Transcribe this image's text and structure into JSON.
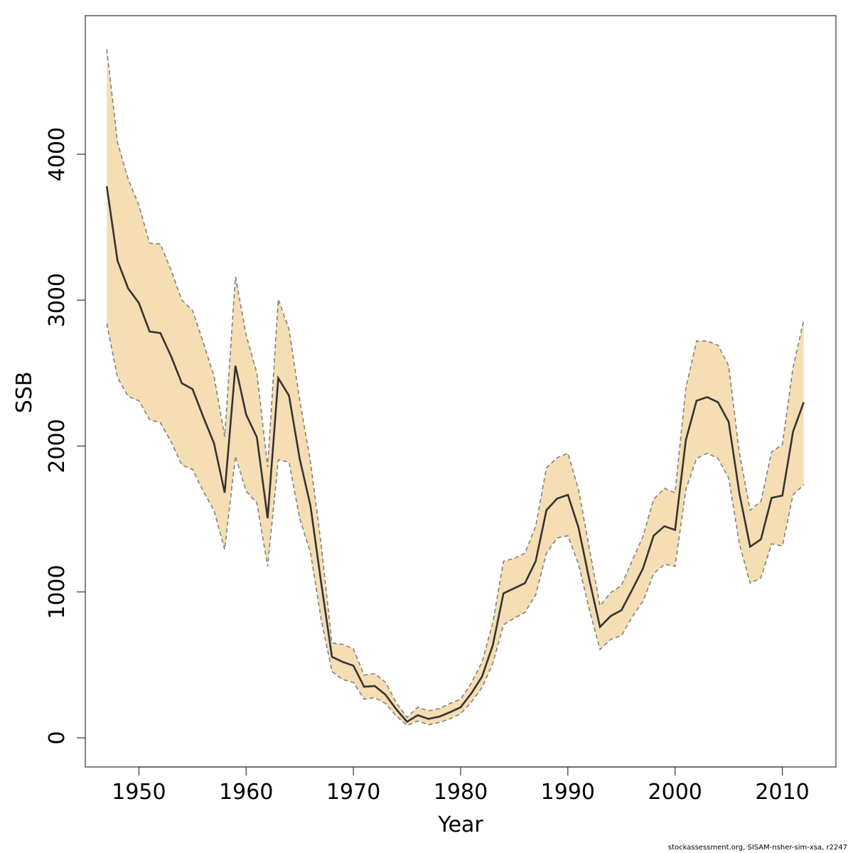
{
  "chart_data": {
    "type": "area",
    "title": "",
    "xlabel": "Year",
    "ylabel": "SSB",
    "xlim": [
      1945,
      2015
    ],
    "ylim": [
      -200,
      4950
    ],
    "xticks": [
      1950,
      1960,
      1970,
      1980,
      1990,
      2000,
      2010
    ],
    "yticks": [
      0,
      1000,
      2000,
      3000,
      4000
    ],
    "grid": false,
    "colors": {
      "band": "#f5deb3",
      "line": "#333333",
      "bound": "#808080"
    },
    "x": [
      1947,
      1948,
      1949,
      1950,
      1951,
      1952,
      1953,
      1954,
      1955,
      1956,
      1957,
      1958,
      1959,
      1960,
      1961,
      1962,
      1963,
      1964,
      1965,
      1966,
      1967,
      1968,
      1969,
      1970,
      1971,
      1972,
      1973,
      1974,
      1975,
      1976,
      1977,
      1978,
      1979,
      1980,
      1981,
      1982,
      1983,
      1984,
      1985,
      1986,
      1987,
      1988,
      1989,
      1990,
      1991,
      1992,
      1993,
      1994,
      1995,
      1996,
      1997,
      1998,
      1999,
      2000,
      2001,
      2002,
      2003,
      2004,
      2005,
      2006,
      2007,
      2008,
      2009,
      2010,
      2011,
      2012
    ],
    "series": [
      {
        "role": "estimate",
        "values": [
          3780,
          3270,
          3080,
          2980,
          2785,
          2775,
          2615,
          2430,
          2390,
          2200,
          2020,
          1680,
          2550,
          2215,
          2060,
          1505,
          2465,
          2345,
          1910,
          1590,
          1060,
          555,
          520,
          495,
          350,
          355,
          295,
          195,
          110,
          155,
          130,
          145,
          175,
          210,
          305,
          420,
          635,
          990,
          1025,
          1060,
          1210,
          1560,
          1640,
          1665,
          1440,
          1085,
          760,
          835,
          875,
          1015,
          1160,
          1385,
          1450,
          1425,
          2040,
          2310,
          2335,
          2300,
          2165,
          1675,
          1310,
          1360,
          1645,
          1660,
          2100,
          2300
        ]
      },
      {
        "role": "upper",
        "values": [
          4720,
          4080,
          3830,
          3650,
          3390,
          3385,
          3205,
          3000,
          2930,
          2710,
          2480,
          2065,
          3160,
          2760,
          2500,
          1855,
          3005,
          2800,
          2310,
          1890,
          1320,
          650,
          640,
          610,
          430,
          440,
          380,
          240,
          140,
          210,
          185,
          200,
          235,
          265,
          375,
          520,
          790,
          1210,
          1230,
          1265,
          1450,
          1850,
          1920,
          1950,
          1700,
          1300,
          905,
          995,
          1045,
          1215,
          1380,
          1635,
          1710,
          1680,
          2395,
          2720,
          2720,
          2690,
          2550,
          1950,
          1560,
          1620,
          1960,
          2010,
          2540,
          2860
        ]
      },
      {
        "role": "lower",
        "values": [
          2840,
          2470,
          2340,
          2310,
          2180,
          2160,
          2030,
          1870,
          1840,
          1690,
          1560,
          1290,
          1930,
          1690,
          1610,
          1175,
          1905,
          1890,
          1500,
          1270,
          810,
          455,
          400,
          380,
          265,
          275,
          235,
          150,
          85,
          115,
          90,
          105,
          130,
          165,
          245,
          345,
          510,
          775,
          820,
          860,
          980,
          1265,
          1370,
          1385,
          1190,
          880,
          605,
          675,
          700,
          830,
          935,
          1125,
          1190,
          1175,
          1700,
          1915,
          1950,
          1915,
          1780,
          1330,
          1060,
          1095,
          1330,
          1315,
          1665,
          1735
        ]
      }
    ]
  },
  "footer": {
    "credit": "stockassessment.org, SISAM-nsher-sim-xsa, r2247"
  }
}
